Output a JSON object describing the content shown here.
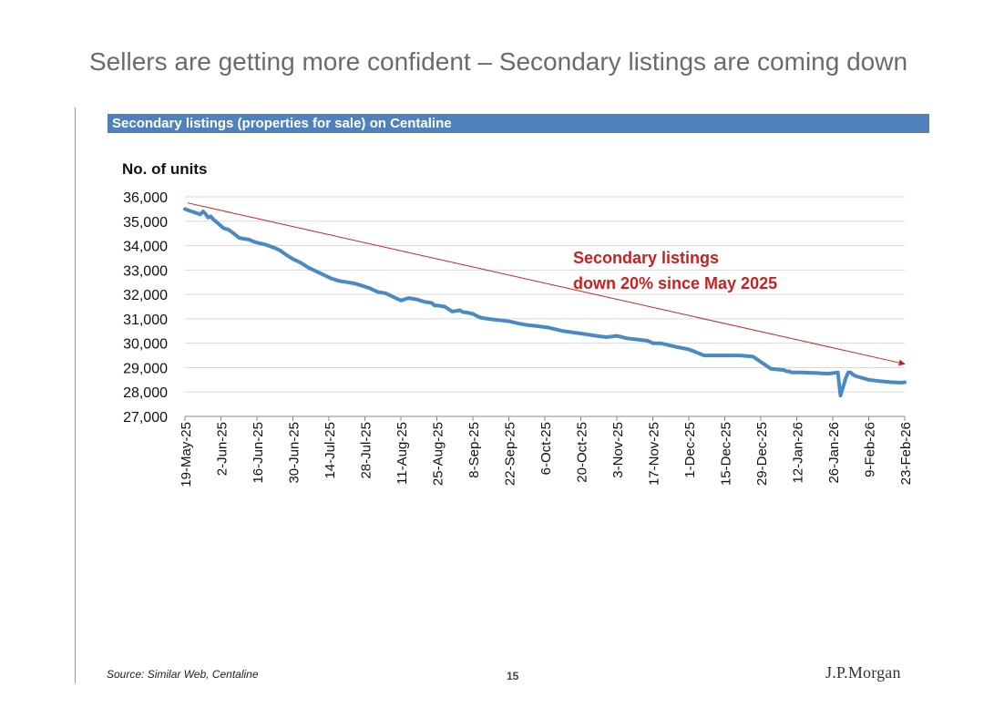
{
  "slide": {
    "title": "Sellers are getting more confident – Secondary listings are coming down",
    "source": "Source: Similar Web, Centaline",
    "page_number": "15",
    "logo": "J.P.Morgan"
  },
  "colors": {
    "banner": "#4f81bd",
    "series": "#4a8ac4",
    "trend": "#cc2222",
    "annotation": "#cc1f1f",
    "grid": "#d9d9d9"
  },
  "chart_data": {
    "type": "line",
    "banner_title": "Secondary listings (properties for sale) on Centaline",
    "ylabel": "No. of units",
    "ylim": [
      27000,
      36000
    ],
    "yticks": [
      27000,
      28000,
      29000,
      30000,
      31000,
      32000,
      33000,
      34000,
      35000,
      36000
    ],
    "ytick_labels": [
      "27,000",
      "28,000",
      "29,000",
      "30,000",
      "31,000",
      "32,000",
      "33,000",
      "34,000",
      "35,000",
      "36,000"
    ],
    "x_start": "19-May-25",
    "x_end": "23-Feb-26",
    "x_range_days": [
      0,
      280
    ],
    "xtick_days": [
      0,
      14,
      28,
      42,
      56,
      70,
      84,
      98,
      112,
      126,
      140,
      154,
      168,
      182,
      196,
      210,
      224,
      238,
      252,
      266,
      280
    ],
    "xtick_labels": [
      "19-May-25",
      "2-Jun-25",
      "16-Jun-25",
      "30-Jun-25",
      "14-Jul-25",
      "28-Jul-25",
      "11-Aug-25",
      "25-Aug-25",
      "8-Sep-25",
      "22-Sep-25",
      "6-Oct-25",
      "20-Oct-25",
      "3-Nov-25",
      "17-Nov-25",
      "1-Dec-25",
      "15-Dec-25",
      "29-Dec-25",
      "12-Jan-26",
      "26-Jan-26",
      "9-Feb-26",
      "23-Feb-26"
    ],
    "series": [
      {
        "name": "Secondary listings",
        "x_days": [
          0,
          2,
          4,
          6,
          7,
          8,
          9,
          10,
          11,
          13,
          15,
          17,
          19,
          21,
          23,
          25,
          27,
          29,
          31,
          33,
          35,
          37,
          39,
          42,
          45,
          48,
          51,
          54,
          57,
          60,
          63,
          66,
          69,
          72,
          75,
          78,
          81,
          84,
          87,
          90,
          93,
          96,
          97,
          98,
          101,
          104,
          107,
          108,
          110,
          112,
          113,
          115,
          119,
          122,
          126,
          130,
          133,
          137,
          141,
          147,
          154,
          160,
          164,
          168,
          172,
          176,
          180,
          182,
          185,
          189,
          191,
          196,
          202,
          210,
          216,
          221,
          228,
          233,
          234,
          235,
          236,
          237,
          240,
          245,
          250,
          254,
          255,
          256,
          257,
          258,
          259,
          260,
          261,
          266,
          270,
          275,
          279,
          280
        ],
        "values": [
          35500,
          35420,
          35350,
          35280,
          35400,
          35300,
          35150,
          35200,
          35080,
          34900,
          34720,
          34650,
          34500,
          34320,
          34280,
          34250,
          34150,
          34100,
          34050,
          33980,
          33900,
          33800,
          33650,
          33450,
          33300,
          33100,
          32950,
          32800,
          32650,
          32550,
          32500,
          32450,
          32350,
          32250,
          32100,
          32050,
          31900,
          31750,
          31850,
          31800,
          31700,
          31650,
          31550,
          31550,
          31500,
          31300,
          31350,
          31280,
          31250,
          31200,
          31150,
          31050,
          30980,
          30950,
          30900,
          30800,
          30750,
          30700,
          30650,
          30500,
          30400,
          30300,
          30250,
          30300,
          30200,
          30150,
          30100,
          30000,
          30000,
          29900,
          29850,
          29750,
          29500,
          29500,
          29500,
          29450,
          28950,
          28900,
          28850,
          28850,
          28800,
          28800,
          28800,
          28780,
          28750,
          28800,
          27850,
          28200,
          28550,
          28800,
          28800,
          28700,
          28650,
          28500,
          28450,
          28400,
          28380,
          28400
        ]
      }
    ],
    "trendline": {
      "start": [
        0,
        35750
      ],
      "end": [
        280,
        29150
      ]
    },
    "annotation": [
      "Secondary listings",
      "down 20% since May 2025"
    ]
  }
}
